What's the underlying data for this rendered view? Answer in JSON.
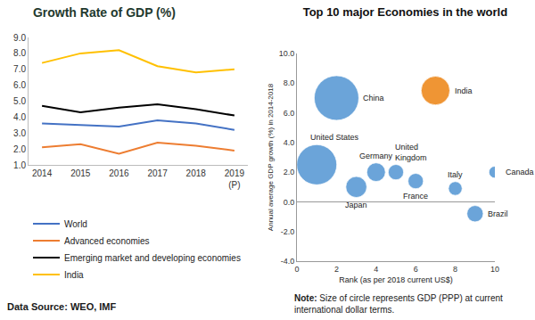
{
  "chart_data": [
    {
      "type": "line",
      "title": "Growth Rate of GDP (%)",
      "categories": [
        "2014",
        "2015",
        "2016",
        "2017",
        "2018",
        "2019 (P)"
      ],
      "series": [
        {
          "name": "World",
          "color": "#4472c4",
          "values": [
            3.6,
            3.5,
            3.4,
            3.8,
            3.6,
            3.2
          ]
        },
        {
          "name": "Advanced economies",
          "color": "#ed7d31",
          "values": [
            2.1,
            2.3,
            1.7,
            2.4,
            2.2,
            1.9
          ]
        },
        {
          "name": "Emerging market and developing economies",
          "color": "#000000",
          "values": [
            4.7,
            4.3,
            4.6,
            4.8,
            4.5,
            4.1
          ]
        },
        {
          "name": "India",
          "color": "#ffc000",
          "values": [
            7.4,
            8.0,
            8.2,
            7.2,
            6.8,
            7.0
          ]
        }
      ],
      "ylim": [
        1,
        9
      ],
      "yticks": [
        {
          "value": 1,
          "label": "1.0"
        },
        {
          "value": 2,
          "label": "2.0"
        },
        {
          "value": 3,
          "label": "3.0"
        },
        {
          "value": 4,
          "label": "4.0"
        },
        {
          "value": 5,
          "label": "5.0"
        },
        {
          "value": 6,
          "label": "6.0"
        },
        {
          "value": 7,
          "label": "7.0"
        },
        {
          "value": 8,
          "label": "8.0"
        },
        {
          "value": 9,
          "label": "9.0"
        }
      ],
      "grid": false,
      "legend": "bottom",
      "marker": "none",
      "line_style": "solid",
      "source": "Data Source: WEO, IMF"
    },
    {
      "type": "bubble",
      "title": "Top 10 major Economies in the world",
      "x_label": "Rank (as per 2018 current US$)",
      "y_label": "Annual average GDP growth (%) in 2014-2018",
      "labels": [
        "United States",
        "China",
        "Japan",
        "Germany",
        "United Kingdom",
        "France",
        "India",
        "Italy",
        "Brazil",
        "Canada"
      ],
      "x": [
        1,
        2,
        3,
        4,
        5,
        6,
        7,
        8,
        9,
        10
      ],
      "values": [
        2.5,
        7.0,
        1.0,
        2.0,
        2.0,
        1.4,
        7.5,
        0.9,
        -0.8,
        2.0
      ],
      "sizes": [
        20.5,
        25.3,
        5.6,
        4.4,
        3.0,
        3.0,
        10.5,
        2.4,
        3.4,
        1.8
      ],
      "colors": [
        "#5b9bd5",
        "#5b9bd5",
        "#5b9bd5",
        "#5b9bd5",
        "#5b9bd5",
        "#5b9bd5",
        "#ee8a1f",
        "#5b9bd5",
        "#5b9bd5",
        "#5b9bd5"
      ],
      "xlim": [
        0,
        10
      ],
      "xticks": [
        0,
        2,
        4,
        6,
        8,
        10
      ],
      "ylim": [
        -4,
        10
      ],
      "yticks": [
        {
          "value": -4,
          "label": "-4.0"
        },
        {
          "value": -2,
          "label": "-2.0"
        },
        {
          "value": 0,
          "label": "0.0"
        },
        {
          "value": 2,
          "label": "2.0"
        },
        {
          "value": 4,
          "label": "4.0"
        },
        {
          "value": 6,
          "label": "6.0"
        },
        {
          "value": 8,
          "label": "8.0"
        },
        {
          "value": 10,
          "label": "10.0"
        }
      ],
      "grid": false,
      "note": {
        "label": "Note:",
        "text": "Size of circle represents GDP (PPP) at current international dollar terms."
      }
    }
  ]
}
